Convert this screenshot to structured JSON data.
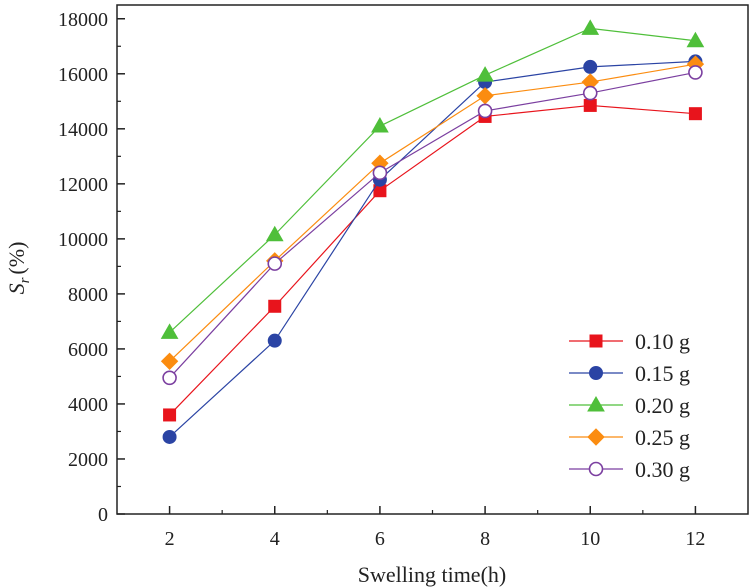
{
  "chart_data": {
    "type": "line",
    "title": "",
    "xlabel": "Swelling time(h)",
    "ylabel_main": "S",
    "ylabel_sub": "r",
    "ylabel_unit": "(%)",
    "x": [
      2,
      4,
      6,
      8,
      10,
      12
    ],
    "xticks": [
      2,
      4,
      6,
      8,
      10,
      12
    ],
    "yticks": [
      0,
      2000,
      4000,
      6000,
      8000,
      10000,
      12000,
      14000,
      16000,
      18000
    ],
    "xlim": [
      1,
      13
    ],
    "ylim": [
      0,
      18500
    ],
    "grid": false,
    "legend_position": "bottom-right",
    "series": [
      {
        "name": "0.10 g",
        "marker": "square",
        "color": "#e8141c",
        "filled": true,
        "values": [
          3600,
          7550,
          11750,
          14450,
          14850,
          14550
        ]
      },
      {
        "name": "0.15 g",
        "marker": "circle",
        "color": "#2b44a4",
        "filled": true,
        "values": [
          2800,
          6300,
          12150,
          15700,
          16250,
          16450
        ]
      },
      {
        "name": "0.20 g",
        "marker": "triangle",
        "color": "#4fbf3a",
        "filled": true,
        "values": [
          6600,
          10150,
          14100,
          15950,
          17650,
          17200
        ]
      },
      {
        "name": "0.25 g",
        "marker": "diamond",
        "color": "#fb8c10",
        "filled": true,
        "values": [
          5550,
          9200,
          12750,
          15200,
          15700,
          16350
        ]
      },
      {
        "name": "0.30 g",
        "marker": "circle",
        "color": "#7b3fa0",
        "filled": false,
        "values": [
          4950,
          9100,
          12400,
          14650,
          15300,
          16050
        ]
      }
    ]
  }
}
